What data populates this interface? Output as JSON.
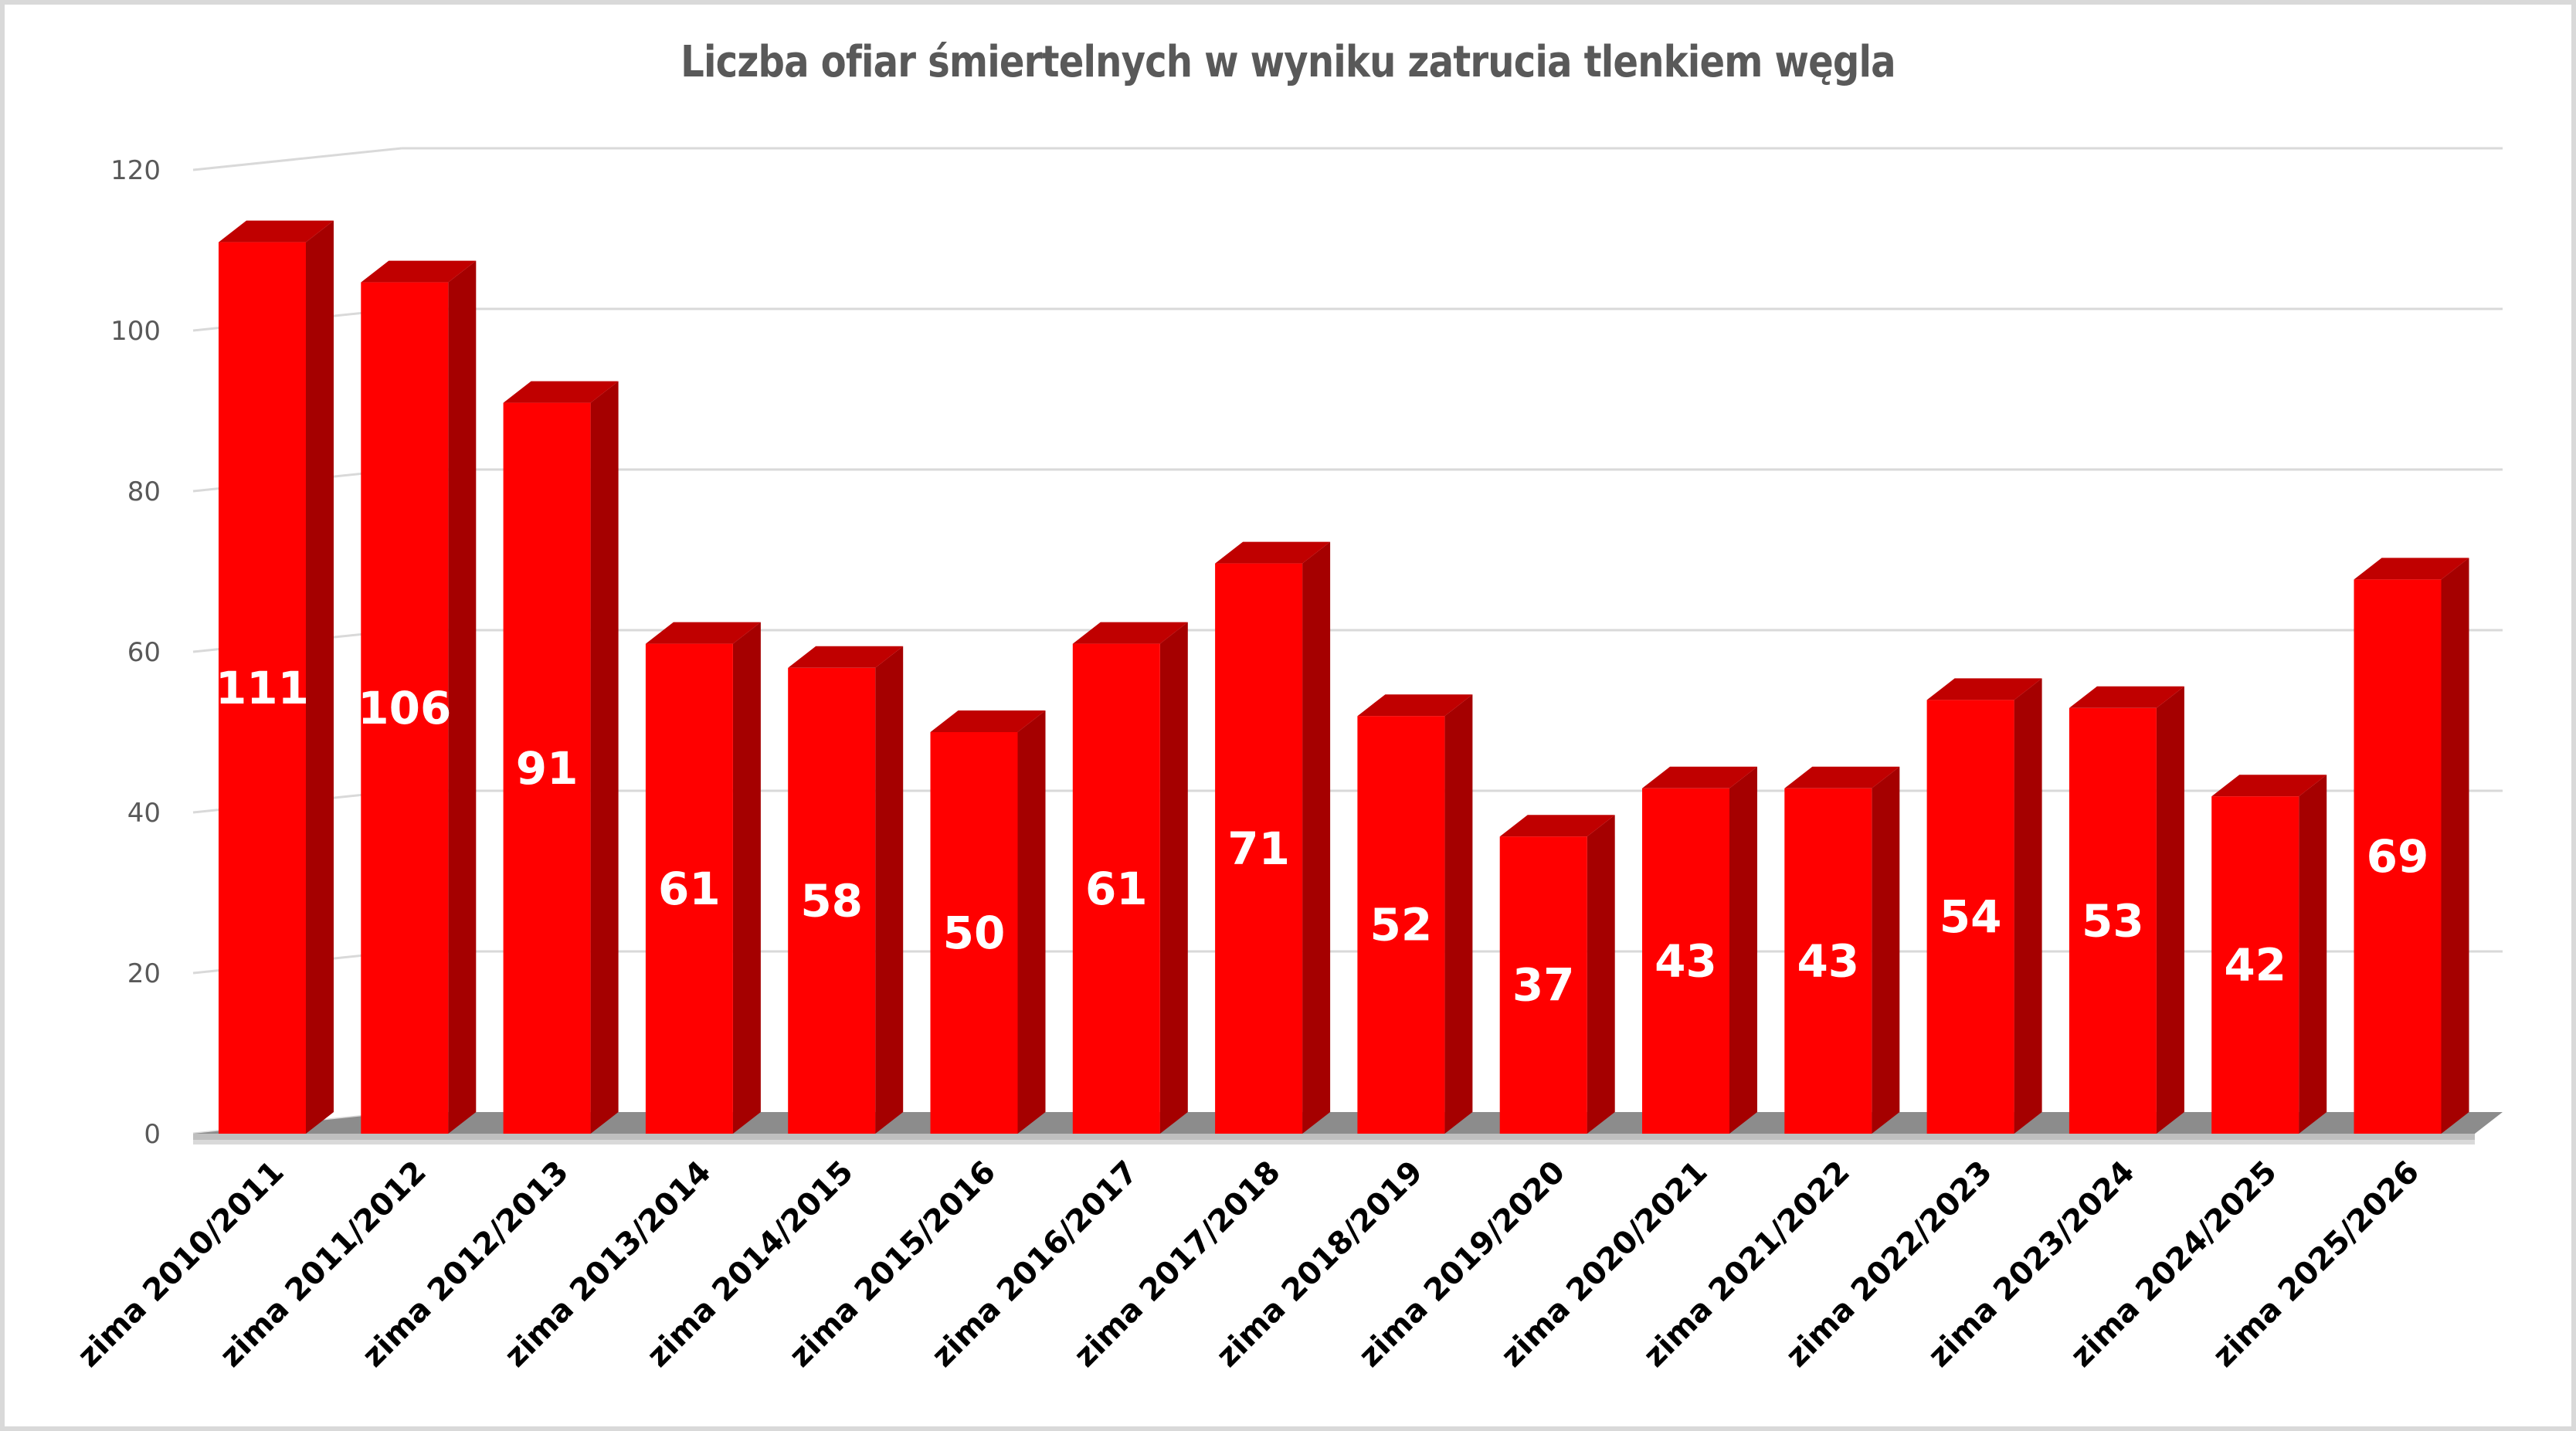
{
  "chart_data": {
    "type": "bar",
    "style": "3d-column",
    "title": "Liczba ofiar śmiertelnych w wyniku zatrucia tlenkiem węgla",
    "xlabel": "",
    "ylabel": "",
    "ylim": [
      0,
      120
    ],
    "yticks": [
      0,
      20,
      40,
      60,
      80,
      100,
      120
    ],
    "grid": true,
    "legend": null,
    "data_labels": true,
    "bar_color": "#ff0000",
    "bar_side_color": "#a50000",
    "bar_top_color": "#c00000",
    "categories": [
      "zima 2010/2011",
      "zima 2011/2012",
      "zima 2012/2013",
      "zima 2013/2014",
      "zima 2014/2015",
      "zima 2015/2016",
      "zima 2016/2017",
      "zima 2017/2018",
      "zima 2018/2019",
      "zima 2019/2020",
      "zima 2020/2021",
      "zima 2021/2022",
      "zima 2022/2023",
      "zima 2023/2024",
      "zima 2024/2025",
      "zima 2025/2026"
    ],
    "values": [
      111,
      106,
      91,
      61,
      58,
      50,
      61,
      71,
      52,
      37,
      43,
      43,
      54,
      53,
      42,
      69
    ]
  }
}
